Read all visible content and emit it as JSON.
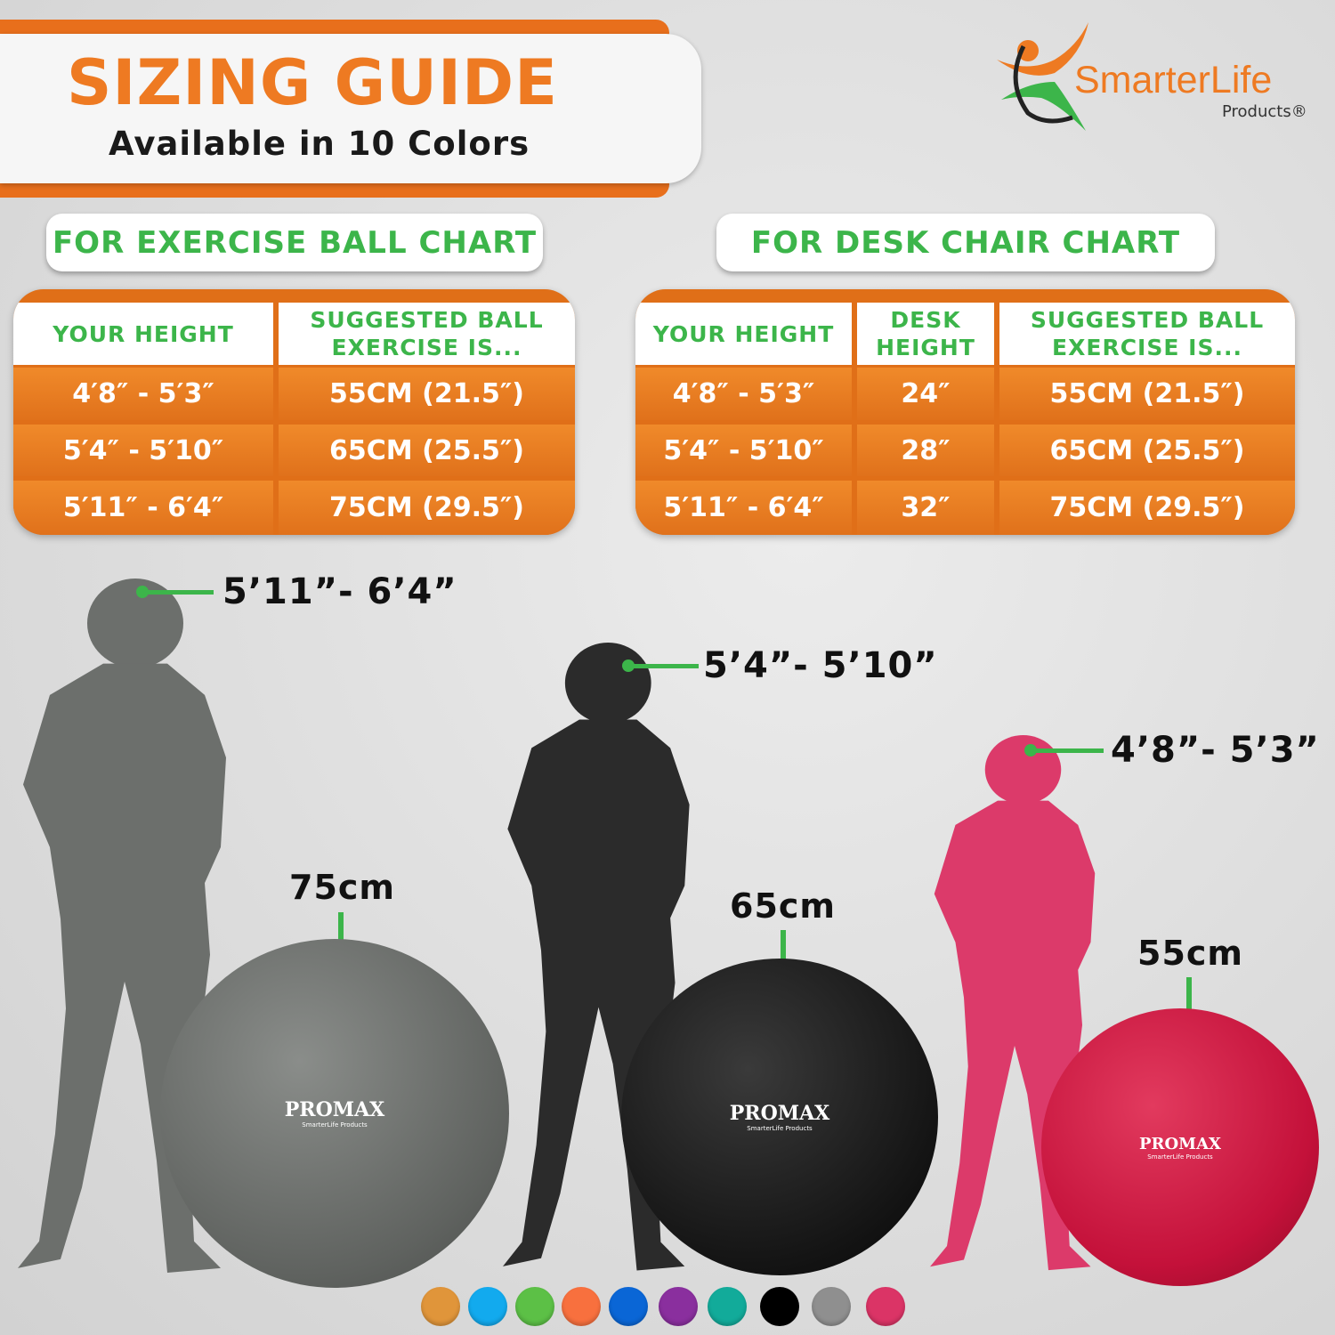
{
  "header": {
    "title": "SIZING GUIDE",
    "subtitle": "Available in 10 Colors"
  },
  "logo": {
    "name": "SmarterLife",
    "sub": "Products®"
  },
  "exercise_chart": {
    "label": "FOR EXERCISE BALL CHART",
    "columns": [
      "YOUR HEIGHT",
      "SUGGESTED BALL EXERCISE IS..."
    ],
    "rows": [
      [
        "4′8″ - 5′3″",
        "55CM (21.5″)"
      ],
      [
        "5′4″ - 5′10″",
        "65CM (25.5″)"
      ],
      [
        "5′11″ - 6′4″",
        "75CM (29.5″)"
      ]
    ]
  },
  "desk_chart": {
    "label": "FOR DESK CHAIR CHART",
    "columns": [
      "YOUR HEIGHT",
      "DESK HEIGHT",
      "SUGGESTED BALL EXERCISE IS..."
    ],
    "rows": [
      [
        "4′8″ - 5′3″",
        "24″",
        "55CM (21.5″)"
      ],
      [
        "5′4″ - 5′10″",
        "28″",
        "65CM (25.5″)"
      ],
      [
        "5′11″ - 6′4″",
        "32″",
        "75CM (29.5″)"
      ]
    ]
  },
  "figures": [
    {
      "height": "5’11”- 6’4”",
      "ball_size": "75cm",
      "color": "#6c6f6c",
      "ball_color": "#707370"
    },
    {
      "height": "5’4”- 5’10”",
      "ball_size": "65cm",
      "color": "#2b2b2b",
      "ball_color": "#1e1e1e"
    },
    {
      "height": "4’8”- 5’3”",
      "ball_size": "55cm",
      "color": "#dc3a6a",
      "ball_color": "#c8123c"
    }
  ],
  "ball_brand": {
    "name": "PROMAX",
    "sub": "SmarterLife Products"
  },
  "colors": [
    "#e0953a",
    "#12aaee",
    "#5cc046",
    "#f8703e",
    "#0a66d6",
    "#8a2f9e",
    "#12ab9a",
    "#000000",
    "#8f8f8f",
    "#db3466"
  ]
}
